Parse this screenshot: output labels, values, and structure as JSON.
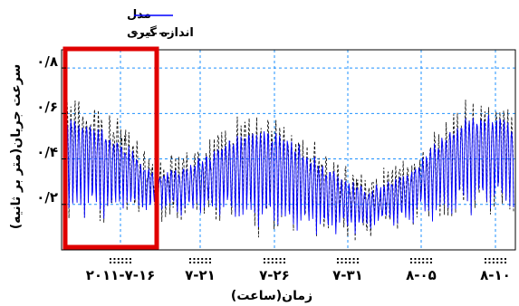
{
  "chart_data": {
    "type": "line",
    "xlabel": "زمان(ساعت)",
    "ylabel": "سرعت جریان(متر بر ثانیه)",
    "y_ticks": [
      "۰/۸",
      "۰/۶",
      "۰/۴",
      "۰/۲"
    ],
    "y_tick_values": [
      0.8,
      0.6,
      0.4,
      0.2
    ],
    "ylim": [
      0.0,
      0.88
    ],
    "x_ticks": [
      "2011-7-16",
      "7-21",
      "7-26",
      "7-31",
      "8-05",
      "8-10"
    ],
    "x_tick_labels": [
      "۲۰۱۱-۷-۱۶",
      "۷-۲۱",
      "۷-۲۶",
      "۷-۳۱",
      "۸-۰۵",
      "۸-۱۰"
    ],
    "x_tick_colons": "::::::",
    "grid": true,
    "legend_position": "top-left",
    "highlight_box": "around the first days, 2011-7-14 to 2011-7-17",
    "series": [
      {
        "name": "مدل",
        "color": "#0000ff",
        "style": "solid"
      },
      {
        "name": "اندازه گیری",
        "color": "#000000",
        "style": "dashed"
      }
    ],
    "colors": {
      "model": "#0000ff",
      "measured": "#000000",
      "grid": "#1e90ff",
      "highlight": "#e00000"
    }
  }
}
